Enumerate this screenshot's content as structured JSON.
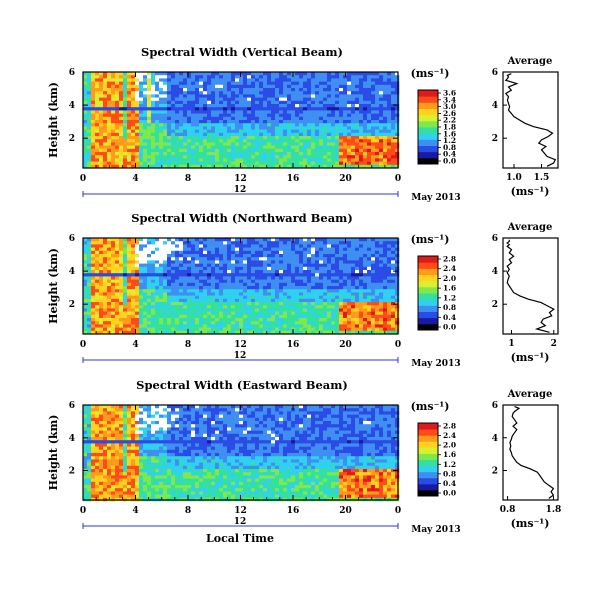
{
  "figure": {
    "x_axis_label": "Local Time",
    "date_label": "May 2013",
    "x_subtick_label": "12",
    "avg_title": "Average",
    "avg_xlabel": "(ms⁻¹)",
    "colorbar_unit": "(ms⁻¹)",
    "ylabel": "Height (km)"
  },
  "colors": {
    "colormap": [
      "#000000",
      "#1a1aa0",
      "#2b4be6",
      "#3f8ff2",
      "#2fd0f0",
      "#33e0a0",
      "#7fe84a",
      "#d8f030",
      "#ffd21e",
      "#ff9a1a",
      "#ff4a1a",
      "#e01a1a"
    ],
    "background": "#ffffff",
    "axis": "#000000",
    "timeline": "#3333cc"
  },
  "chart_data": [
    {
      "type": "heatmap",
      "title": "Spectral Width (Vertical Beam)",
      "xlabel": "Local Time",
      "ylabel": "Height (km)",
      "x_ticks": [
        "0",
        "4",
        "8",
        "12",
        "16",
        "20",
        "0"
      ],
      "y_ticks": [
        "2",
        "4",
        "6"
      ],
      "xlim": [
        0,
        24
      ],
      "ylim": [
        0.2,
        6
      ],
      "colorbar": {
        "unit": "(ms⁻¹)",
        "ticks": [
          "3.6",
          "3.4",
          "3.0",
          "2.6",
          "2.2",
          "1.8",
          "1.6",
          "1.2",
          "0.8",
          "0.4",
          "0.0"
        ],
        "range": [
          0,
          3.6
        ]
      },
      "average": {
        "title": "Average",
        "xlabel": "(ms⁻¹)",
        "x_ticks": [
          "1.0",
          "1.5"
        ],
        "y_ticks": [
          "2",
          "4",
          "6"
        ],
        "xlim": [
          0.8,
          1.8
        ],
        "ylim": [
          0.2,
          6
        ],
        "x": [
          1.6,
          1.72,
          1.75,
          1.6,
          1.55,
          1.5,
          1.58,
          1.45,
          1.5,
          1.62,
          1.7,
          1.6,
          1.35,
          1.2,
          1.1,
          1.0,
          0.95,
          0.9,
          0.92,
          0.9,
          0.88,
          0.9,
          0.85,
          0.95,
          0.9,
          1.05,
          0.85,
          0.88,
          0.9,
          0.88,
          0.95
        ],
        "y": [
          0.3,
          0.5,
          0.7,
          0.9,
          1.1,
          1.3,
          1.5,
          1.7,
          1.9,
          2.1,
          2.3,
          2.5,
          2.7,
          2.9,
          3.1,
          3.3,
          3.5,
          3.7,
          3.9,
          4.1,
          4.3,
          4.5,
          4.7,
          4.9,
          5.1,
          5.3,
          5.5,
          5.6,
          5.7,
          5.8,
          5.9
        ]
      }
    },
    {
      "type": "heatmap",
      "title": "Spectral Width (Northward Beam)",
      "xlabel": "Local Time",
      "ylabel": "Height (km)",
      "x_ticks": [
        "0",
        "4",
        "8",
        "12",
        "16",
        "20",
        "0"
      ],
      "y_ticks": [
        "2",
        "4",
        "6"
      ],
      "xlim": [
        0,
        24
      ],
      "ylim": [
        0.2,
        6
      ],
      "colorbar": {
        "unit": "(ms⁻¹)",
        "ticks": [
          "2.8",
          "2.4",
          "2.0",
          "1.6",
          "1.2",
          "0.8",
          "0.4",
          "0.0"
        ],
        "range": [
          0,
          2.8
        ]
      },
      "average": {
        "title": "Average",
        "xlabel": "(ms⁻¹)",
        "x_ticks": [
          "1",
          "2"
        ],
        "y_ticks": [
          "2",
          "4",
          "6"
        ],
        "xlim": [
          0.8,
          2.1
        ],
        "ylim": [
          0.2,
          6
        ],
        "x": [
          1.9,
          1.6,
          1.8,
          1.7,
          1.75,
          1.95,
          1.9,
          2.0,
          1.85,
          1.7,
          1.4,
          1.2,
          1.05,
          1.0,
          0.95,
          0.9,
          0.92,
          0.95,
          0.9,
          0.95,
          0.9,
          1.0,
          0.95,
          1.05,
          0.95,
          1.0,
          0.9,
          0.95,
          0.9,
          0.95,
          0.95
        ],
        "y": [
          0.3,
          0.5,
          0.7,
          0.9,
          1.1,
          1.3,
          1.5,
          1.7,
          1.9,
          2.1,
          2.3,
          2.5,
          2.7,
          2.9,
          3.1,
          3.3,
          3.5,
          3.7,
          3.9,
          4.1,
          4.3,
          4.5,
          4.7,
          4.9,
          5.1,
          5.3,
          5.5,
          5.6,
          5.7,
          5.8,
          5.9
        ]
      }
    },
    {
      "type": "heatmap",
      "title": "Spectral Width (Eastward Beam)",
      "xlabel": "Local Time",
      "ylabel": "Height (km)",
      "x_ticks": [
        "0",
        "4",
        "8",
        "12",
        "16",
        "20",
        "0"
      ],
      "y_ticks": [
        "2",
        "4",
        "6"
      ],
      "xlim": [
        0,
        24
      ],
      "ylim": [
        0.2,
        6
      ],
      "colorbar": {
        "unit": "(ms⁻¹)",
        "ticks": [
          "2.8",
          "2.4",
          "2.0",
          "1.6",
          "1.2",
          "0.8",
          "0.4",
          "0.0"
        ],
        "range": [
          0,
          2.8
        ]
      },
      "average": {
        "title": "Average",
        "xlabel": "(ms⁻¹)",
        "x_ticks": [
          "0.8",
          "1.8"
        ],
        "y_ticks": [
          "2",
          "4",
          "6"
        ],
        "xlim": [
          0.7,
          1.9
        ],
        "ylim": [
          0.2,
          6
        ],
        "x": [
          1.7,
          1.8,
          1.75,
          1.8,
          1.7,
          1.6,
          1.55,
          1.5,
          1.45,
          1.3,
          1.1,
          1.0,
          0.95,
          0.9,
          0.88,
          0.85,
          0.87,
          0.85,
          0.88,
          0.9,
          0.95,
          1.0,
          0.92,
          1.0,
          0.95,
          0.9,
          0.92,
          0.95,
          1.0,
          1.05,
          0.95
        ],
        "y": [
          0.3,
          0.5,
          0.7,
          0.9,
          1.1,
          1.3,
          1.5,
          1.7,
          1.9,
          2.1,
          2.3,
          2.5,
          2.7,
          2.9,
          3.1,
          3.3,
          3.5,
          3.7,
          3.9,
          4.1,
          4.3,
          4.5,
          4.7,
          4.9,
          5.1,
          5.3,
          5.5,
          5.6,
          5.7,
          5.8,
          5.9
        ]
      }
    }
  ]
}
